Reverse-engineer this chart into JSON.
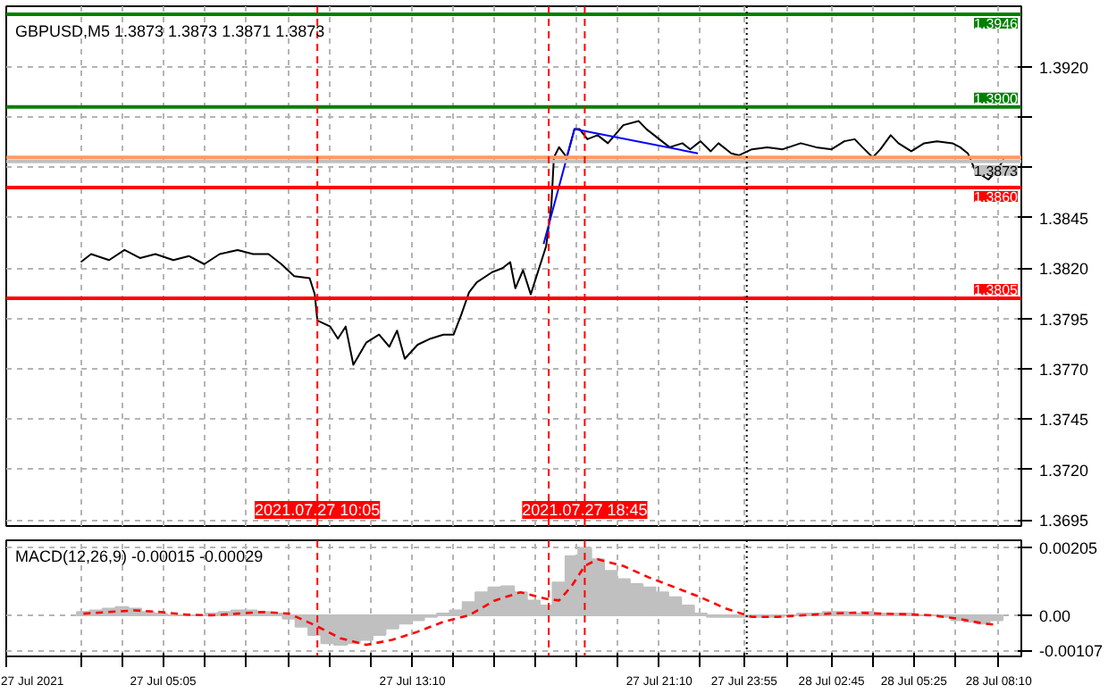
{
  "chart_data": [
    {
      "type": "line",
      "title": "GBPUSD,M5 1.3873 1.3873 1.3871 1.3873",
      "xlim": [
        "2021-07-27T00:00",
        "2021-07-28T08:54"
      ],
      "ylim": [
        1.3692,
        1.395
      ],
      "xticks": [
        {
          "value": "2021-07-27T02:25",
          "label": null
        },
        {
          "value": "2021-07-27T03:45",
          "label": null
        },
        {
          "value": "2021-07-27T05:05",
          "label": null
        },
        {
          "value": "2021-07-27T06:25",
          "label": null
        },
        {
          "value": "2021-07-27T07:45",
          "label": null
        },
        {
          "value": "2021-07-27T09:10",
          "label": null
        },
        {
          "value": "2021-07-27T10:30",
          "label": null
        },
        {
          "value": "2021-07-27T11:50",
          "label": null
        },
        {
          "value": "2021-07-27T13:10",
          "label": null
        },
        {
          "value": "2021-07-27T14:30",
          "label": null
        },
        {
          "value": "2021-07-27T15:50",
          "label": null
        },
        {
          "value": "2021-07-27T17:10",
          "label": null
        },
        {
          "value": "2021-07-27T18:30",
          "label": null
        },
        {
          "value": "2021-07-27T19:50",
          "label": null
        },
        {
          "value": "2021-07-27T21:10",
          "label": null
        },
        {
          "value": "2021-07-27T22:30",
          "label": null
        },
        {
          "value": "2021-07-27T23:55",
          "label": null
        },
        {
          "value": "2021-07-28T01:20",
          "label": null
        },
        {
          "value": "2021-07-28T02:45",
          "label": null
        },
        {
          "value": "2021-07-28T04:05",
          "label": null
        },
        {
          "value": "2021-07-28T05:25",
          "label": null
        },
        {
          "value": "2021-07-28T06:45",
          "label": null
        },
        {
          "value": "2021-07-28T08:10",
          "label": null
        }
      ],
      "yticks": [
        {
          "value": 1.392,
          "label": "1.3920"
        },
        {
          "value": 1.3895,
          "label": null
        },
        {
          "value": 1.387,
          "label": null
        },
        1.3845,
        {
          "value": 1.382,
          "label": "1.3820"
        },
        1.3795,
        {
          "value": 1.377,
          "label": "1.3770"
        },
        1.3745,
        {
          "value": 1.372,
          "label": "1.3720"
        },
        1.3695
      ],
      "tick_labels": "y",
      "grid": true,
      "series": [
        {
          "color": "#000000",
          "x": [
            "2021-07-27T02:25",
            "2021-07-27T02:45",
            "2021-07-27T03:20",
            "2021-07-27T03:50",
            "2021-07-27T04:20",
            "2021-07-27T04:50",
            "2021-07-27T05:25",
            "2021-07-27T05:55",
            "2021-07-27T06:25",
            "2021-07-27T06:55",
            "2021-07-27T07:30",
            "2021-07-27T08:00",
            "2021-07-27T08:30",
            "2021-07-27T08:55",
            "2021-07-27T09:20",
            "2021-07-27T09:50",
            "2021-07-27T10:00",
            "2021-07-27T10:05",
            "2021-07-27T10:30",
            "2021-07-27T10:45",
            "2021-07-27T11:00",
            "2021-07-27T11:15",
            "2021-07-27T11:40",
            "2021-07-27T12:05",
            "2021-07-27T12:25",
            "2021-07-27T12:40",
            "2021-07-27T12:55",
            "2021-07-27T13:20",
            "2021-07-27T13:45",
            "2021-07-27T14:10",
            "2021-07-27T14:30",
            "2021-07-27T14:45",
            "2021-07-27T15:00",
            "2021-07-27T15:15",
            "2021-07-27T15:45",
            "2021-07-27T16:05",
            "2021-07-27T16:20",
            "2021-07-27T16:30",
            "2021-07-27T16:45",
            "2021-07-27T17:00",
            "2021-07-27T17:15",
            "2021-07-27T17:30",
            "2021-07-27T17:40",
            "2021-07-27T17:45",
            "2021-07-27T17:55",
            "2021-07-27T18:10",
            "2021-07-27T18:25",
            "2021-07-27T18:35",
            "2021-07-27T18:50",
            "2021-07-27T19:10",
            "2021-07-27T19:30",
            "2021-07-27T20:00",
            "2021-07-27T20:30",
            "2021-07-27T20:45",
            "2021-07-27T21:10",
            "2021-07-27T21:30",
            "2021-07-27T21:55",
            "2021-07-27T22:10",
            "2021-07-27T22:30",
            "2021-07-27T22:50",
            "2021-07-27T23:05",
            "2021-07-27T23:30",
            "2021-07-27T23:45",
            "2021-07-28T00:10",
            "2021-07-28T00:40",
            "2021-07-28T01:10",
            "2021-07-28T01:45",
            "2021-07-28T02:15",
            "2021-07-28T02:45",
            "2021-07-28T03:10",
            "2021-07-28T03:30",
            "2021-07-28T03:45",
            "2021-07-28T04:05",
            "2021-07-28T04:20",
            "2021-07-28T04:40",
            "2021-07-28T04:55",
            "2021-07-28T05:20",
            "2021-07-28T05:45",
            "2021-07-28T06:10",
            "2021-07-28T06:40",
            "2021-07-28T06:55",
            "2021-07-28T07:10",
            "2021-07-28T07:25",
            "2021-07-28T07:50",
            "2021-07-28T08:05",
            "2021-07-28T08:20"
          ],
          "values": [
            1.3823,
            1.3827,
            1.3824,
            1.3829,
            1.3825,
            1.3827,
            1.3824,
            1.3826,
            1.3822,
            1.3827,
            1.3829,
            1.3827,
            1.3827,
            1.3822,
            1.3816,
            1.3815,
            1.3807,
            1.3794,
            1.3791,
            1.3785,
            1.3791,
            1.3772,
            1.3783,
            1.3787,
            1.3781,
            1.3789,
            1.3775,
            1.3782,
            1.3785,
            1.3787,
            1.3787,
            1.3797,
            1.3808,
            1.3813,
            1.3818,
            1.382,
            1.3823,
            1.381,
            1.3819,
            1.3807,
            1.3819,
            1.3831,
            1.3851,
            1.3875,
            1.388,
            1.3875,
            1.3889,
            1.3889,
            1.3884,
            1.3886,
            1.3882,
            1.3891,
            1.3893,
            1.3889,
            1.3884,
            1.388,
            1.3882,
            1.3879,
            1.3883,
            1.3878,
            1.3882,
            1.3877,
            1.3876,
            1.3879,
            1.388,
            1.3879,
            1.3882,
            1.388,
            1.3879,
            1.3883,
            1.3884,
            1.388,
            1.3875,
            1.3879,
            1.3886,
            1.3882,
            1.3878,
            1.3882,
            1.3883,
            1.3882,
            1.388,
            1.3877,
            1.3868,
            1.3864,
            1.3868,
            1.3874
          ]
        },
        {
          "color": "#0000ff",
          "x": [
            "2021-07-27T17:25",
            "2021-07-27T18:25",
            "2021-07-27T22:25"
          ],
          "values": [
            1.3832,
            1.3889,
            1.3877
          ]
        }
      ],
      "ref_lines": [
        {
          "axis": "y",
          "value": 1.3946,
          "label": "1.3946",
          "color": "#008000"
        },
        {
          "axis": "y",
          "value": 1.39,
          "label": "1.3900",
          "color": "#008000"
        },
        {
          "axis": "y",
          "value": 1.3875,
          "color": "#ff9966"
        },
        {
          "axis": "y",
          "value": 1.3873,
          "label": "1.3873",
          "color": "#c0c0c0"
        },
        {
          "axis": "y",
          "value": 1.386,
          "label": "1.3860",
          "color": "#ff0000"
        },
        {
          "axis": "y",
          "value": 1.3805,
          "label": "1.3805",
          "color": "#ff0000"
        },
        {
          "axis": "x",
          "value": "2021-07-27T10:05",
          "label": "2021.07.27 10:05",
          "color": "#ff0000",
          "line_style": "dashed"
        },
        {
          "axis": "x",
          "value": "2021-07-27T17:35",
          "color": "#ff0000",
          "line_style": "dashed"
        },
        {
          "axis": "x",
          "value": "2021-07-27T18:45",
          "label": "2021.07.27 18:45",
          "color": "#ff0000",
          "line_style": "dashed"
        },
        {
          "axis": "x",
          "value": "2021-07-28T00:00",
          "color": "#000000",
          "line_style": "dotted"
        }
      ]
    },
    {
      "type": "bar",
      "title": "MACD(12,26,9) -0.00015 -0.00029",
      "xlim": [
        "2021-07-27T00:00",
        "2021-07-28T08:54"
      ],
      "ylim": [
        -0.00125,
        0.00228
      ],
      "xticks": [
        {
          "value": "2021-07-27T00:00",
          "label": "27 Jul 2021"
        },
        {
          "value": "2021-07-27T02:25",
          "label": null
        },
        {
          "value": "2021-07-27T03:45",
          "label": null
        },
        {
          "value": "2021-07-27T05:05",
          "label": "27 Jul 05:05"
        },
        {
          "value": "2021-07-27T06:25",
          "label": null
        },
        {
          "value": "2021-07-27T07:45",
          "label": null
        },
        {
          "value": "2021-07-27T09:10",
          "label": null
        },
        {
          "value": "2021-07-27T10:30",
          "label": null
        },
        {
          "value": "2021-07-27T11:50",
          "label": null
        },
        {
          "value": "2021-07-27T13:10",
          "label": "27 Jul 13:10"
        },
        {
          "value": "2021-07-27T14:30",
          "label": null
        },
        {
          "value": "2021-07-27T15:50",
          "label": null
        },
        {
          "value": "2021-07-27T17:10",
          "label": null
        },
        {
          "value": "2021-07-27T18:30",
          "label": null
        },
        {
          "value": "2021-07-27T19:50",
          "label": null
        },
        {
          "value": "2021-07-27T21:10",
          "label": "27 Jul 21:10"
        },
        {
          "value": "2021-07-27T22:30",
          "label": null
        },
        {
          "value": "2021-07-27T23:55",
          "label": "27 Jul 23:55"
        },
        {
          "value": "2021-07-28T01:20",
          "label": null
        },
        {
          "value": "2021-07-28T02:45",
          "label": "28 Jul 02:45"
        },
        {
          "value": "2021-07-28T04:05",
          "label": null
        },
        {
          "value": "2021-07-28T05:25",
          "label": "28 Jul 05:25"
        },
        {
          "value": "2021-07-28T06:45",
          "label": null
        },
        {
          "value": "2021-07-28T08:10",
          "label": "28 Jul 08:10"
        }
      ],
      "yticks": [
        0.00205,
        {
          "value": 0,
          "label": "0.00"
        },
        -0.00107
      ],
      "grid": true,
      "series": [
        {
          "color": "#c0c0c0",
          "x": [
            "2021-07-27T02:30",
            "2021-07-27T02:55",
            "2021-07-27T03:20",
            "2021-07-27T03:45",
            "2021-07-27T04:10",
            "2021-07-27T04:35",
            "2021-07-27T05:00",
            "2021-07-27T05:25",
            "2021-07-27T05:50",
            "2021-07-27T06:15",
            "2021-07-27T06:40",
            "2021-07-27T07:05",
            "2021-07-27T07:30",
            "2021-07-27T07:55",
            "2021-07-27T08:20",
            "2021-07-27T08:45",
            "2021-07-27T09:10",
            "2021-07-27T09:35",
            "2021-07-27T10:00",
            "2021-07-27T10:25",
            "2021-07-27T10:50",
            "2021-07-27T11:15",
            "2021-07-27T11:40",
            "2021-07-27T12:05",
            "2021-07-27T12:30",
            "2021-07-27T12:55",
            "2021-07-27T13:20",
            "2021-07-27T13:45",
            "2021-07-27T14:10",
            "2021-07-27T14:35",
            "2021-07-27T15:00",
            "2021-07-27T15:25",
            "2021-07-27T15:50",
            "2021-07-27T16:15",
            "2021-07-27T16:40",
            "2021-07-27T17:05",
            "2021-07-27T17:30",
            "2021-07-27T17:55",
            "2021-07-27T18:20",
            "2021-07-27T18:45",
            "2021-07-27T19:10",
            "2021-07-27T19:35",
            "2021-07-27T20:00",
            "2021-07-27T20:25",
            "2021-07-27T20:50",
            "2021-07-27T21:15",
            "2021-07-27T21:40",
            "2021-07-27T22:05",
            "2021-07-27T22:30",
            "2021-07-27T22:55",
            "2021-07-27T23:20",
            "2021-07-27T23:45",
            "2021-07-28T00:10",
            "2021-07-28T00:35",
            "2021-07-28T01:00",
            "2021-07-28T01:25",
            "2021-07-28T01:50",
            "2021-07-28T02:15",
            "2021-07-28T02:40",
            "2021-07-28T03:05",
            "2021-07-28T03:30",
            "2021-07-28T03:55",
            "2021-07-28T04:20",
            "2021-07-28T04:45",
            "2021-07-28T05:10",
            "2021-07-28T05:35",
            "2021-07-28T06:00",
            "2021-07-28T06:25",
            "2021-07-28T06:50",
            "2021-07-28T07:15",
            "2021-07-28T07:40",
            "2021-07-28T08:05"
          ],
          "values": [
            0.0001,
            0.00015,
            0.0002,
            0.00025,
            0.0002,
            0.0001,
            5e-05,
            0,
            0,
            0,
            5e-05,
            0.0001,
            0.00015,
            0.00015,
            0.0001,
            5e-05,
            -0.0001,
            -0.00035,
            -0.0006,
            -0.00085,
            -0.0009,
            -0.00085,
            -0.00075,
            -0.0006,
            -0.0004,
            -0.00025,
            -0.00015,
            -5e-05,
            5e-05,
            0.00015,
            0.0004,
            0.0007,
            0.00085,
            0.00088,
            0.0007,
            0.00045,
            0.0003,
            0.001,
            0.0018,
            0.00205,
            0.0017,
            0.00135,
            0.0011,
            0.00095,
            0.00085,
            0.0007,
            0.00055,
            0.0003,
            5e-05,
            -5e-05,
            -5e-05,
            -5e-05,
            -5e-05,
            -5e-05,
            -5e-05,
            0,
            5e-05,
            5e-05,
            0.0001,
            0.0001,
            5e-05,
            0.0001,
            5e-05,
            5e-05,
            5e-05,
            0,
            0,
            -5e-05,
            -0.00015,
            -0.0002,
            -0.00025,
            -0.00015
          ]
        },
        {
          "type": "line",
          "line_style": "dashed",
          "color": "#ff0000",
          "x": [
            "2021-07-27T02:30",
            "2021-07-27T03:20",
            "2021-07-27T04:10",
            "2021-07-27T05:00",
            "2021-07-27T05:50",
            "2021-07-27T06:40",
            "2021-07-27T07:30",
            "2021-07-27T08:20",
            "2021-07-27T09:10",
            "2021-07-27T10:00",
            "2021-07-27T10:50",
            "2021-07-27T11:40",
            "2021-07-27T12:30",
            "2021-07-27T13:20",
            "2021-07-27T14:10",
            "2021-07-27T15:00",
            "2021-07-27T15:50",
            "2021-07-27T16:40",
            "2021-07-27T17:30",
            "2021-07-27T17:55",
            "2021-07-27T18:20",
            "2021-07-27T18:45",
            "2021-07-27T19:10",
            "2021-07-27T20:00",
            "2021-07-27T20:50",
            "2021-07-27T21:40",
            "2021-07-27T22:30",
            "2021-07-27T23:20",
            "2021-07-28T00:10",
            "2021-07-28T01:00",
            "2021-07-28T01:50",
            "2021-07-28T02:40",
            "2021-07-28T03:30",
            "2021-07-28T04:20",
            "2021-07-28T05:10",
            "2021-07-28T06:00",
            "2021-07-28T06:50",
            "2021-07-28T07:40",
            "2021-07-28T08:05"
          ],
          "values": [
            5e-05,
            0.0001,
            0.00015,
            0.0001,
            2e-05,
            0,
            5e-05,
            0.0001,
            5e-05,
            -0.0003,
            -0.0007,
            -0.0009,
            -0.00075,
            -0.0005,
            -0.0002,
            0,
            0.00045,
            0.0007,
            0.0005,
            0.00045,
            0.0009,
            0.0015,
            0.0017,
            0.0015,
            0.00115,
            0.00085,
            0.00055,
            0.0002,
            -5e-05,
            -5e-05,
            0,
            5e-05,
            8e-05,
            5e-05,
            3e-05,
            0,
            -0.0001,
            -0.00025,
            -0.00029
          ]
        }
      ],
      "ref_lines": [
        {
          "axis": "x",
          "value": "2021-07-27T10:05",
          "color": "#ff0000",
          "line_style": "dashed"
        },
        {
          "axis": "x",
          "value": "2021-07-27T17:35",
          "color": "#ff0000",
          "line_style": "dashed"
        },
        {
          "axis": "x",
          "value": "2021-07-27T18:45",
          "color": "#ff0000",
          "line_style": "dashed"
        },
        {
          "axis": "x",
          "value": "2021-07-28T00:00",
          "color": "#000000",
          "line_style": "dotted"
        }
      ]
    }
  ]
}
